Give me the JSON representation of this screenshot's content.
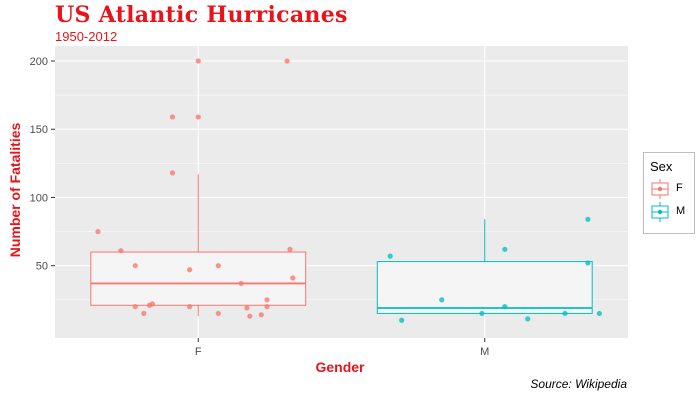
{
  "title": "US Atlantic Hurricanes",
  "subtitle": "1950-2012",
  "caption": "Source: Wikipedia",
  "legend": {
    "title": "Sex",
    "items": [
      {
        "label": "F",
        "color": "#F8766D"
      },
      {
        "label": "M",
        "color": "#00BFC4"
      }
    ]
  },
  "chart_data": {
    "type": "boxplot",
    "xlabel": "Gender",
    "ylabel": "Number of Fatalities",
    "categories": [
      "F",
      "M"
    ],
    "yticks": [
      50,
      100,
      150,
      200
    ],
    "ylim": [
      -3,
      211
    ],
    "colors": {
      "F": "#F8766D",
      "M": "#00BFC4"
    },
    "panel_background": "#EBEBEB",
    "grid": true,
    "legend_position": "right",
    "boxes": [
      {
        "name": "F",
        "min": 13,
        "q1": 21,
        "median": 37,
        "q3": 60,
        "max": 117
      },
      {
        "name": "M",
        "min": 15,
        "q1": 15,
        "median": 19,
        "q3": 53,
        "max": 84
      }
    ],
    "points": {
      "F": [
        {
          "x": -0.35,
          "y": 75
        },
        {
          "x": -0.27,
          "y": 61
        },
        {
          "x": -0.22,
          "y": 50
        },
        {
          "x": -0.22,
          "y": 20
        },
        {
          "x": -0.19,
          "y": 15
        },
        {
          "x": -0.17,
          "y": 21
        },
        {
          "x": -0.16,
          "y": 22
        },
        {
          "x": -0.09,
          "y": 159
        },
        {
          "x": -0.09,
          "y": 118
        },
        {
          "x": -0.03,
          "y": 47
        },
        {
          "x": -0.03,
          "y": 20
        },
        {
          "x": 0.0,
          "y": 200
        },
        {
          "x": 0.0,
          "y": 159
        },
        {
          "x": 0.07,
          "y": 50
        },
        {
          "x": 0.07,
          "y": 15
        },
        {
          "x": 0.15,
          "y": 37
        },
        {
          "x": 0.17,
          "y": 19
        },
        {
          "x": 0.18,
          "y": 13
        },
        {
          "x": 0.22,
          "y": 14
        },
        {
          "x": 0.24,
          "y": 20
        },
        {
          "x": 0.24,
          "y": 25
        },
        {
          "x": 0.31,
          "y": 200
        },
        {
          "x": 0.32,
          "y": 62
        },
        {
          "x": 0.33,
          "y": 41
        }
      ],
      "M": [
        {
          "x": -0.33,
          "y": 57
        },
        {
          "x": -0.29,
          "y": 10
        },
        {
          "x": -0.15,
          "y": 25
        },
        {
          "x": -0.01,
          "y": 15
        },
        {
          "x": 0.07,
          "y": 62
        },
        {
          "x": 0.07,
          "y": 20
        },
        {
          "x": 0.15,
          "y": 11
        },
        {
          "x": 0.28,
          "y": 15
        },
        {
          "x": 0.36,
          "y": 84
        },
        {
          "x": 0.36,
          "y": 52
        },
        {
          "x": 0.4,
          "y": 15
        }
      ]
    }
  }
}
